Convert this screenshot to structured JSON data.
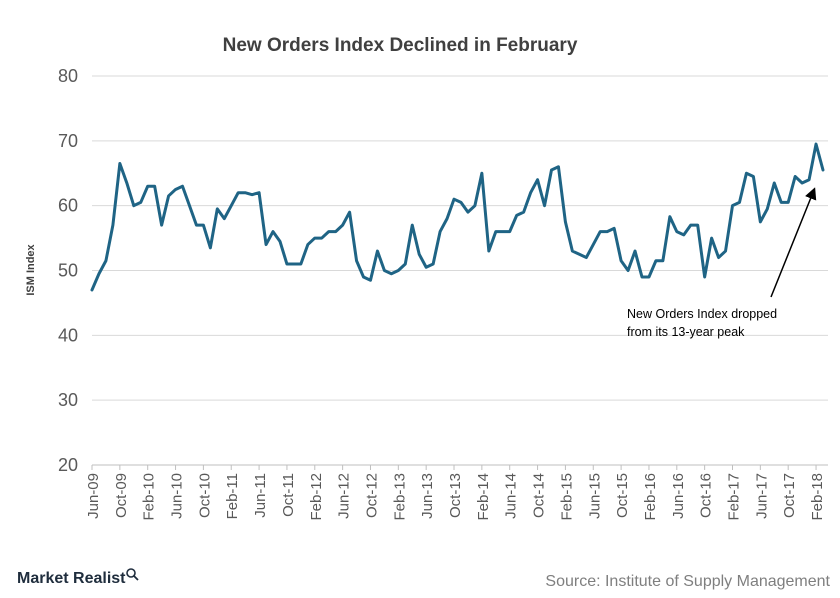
{
  "chart_data": {
    "type": "line",
    "title": "New Orders Index Declined in February",
    "ylabel": "ISM Index",
    "xlabel": "",
    "ylim": [
      20,
      80
    ],
    "yticks": [
      20,
      30,
      40,
      50,
      60,
      70,
      80
    ],
    "grid": true,
    "line_color": "#1f6485",
    "x_tick_labels": [
      "Jun-09",
      "Oct-09",
      "Feb-10",
      "Jun-10",
      "Oct-10",
      "Feb-11",
      "Jun-11",
      "Oct-11",
      "Feb-12",
      "Jun-12",
      "Oct-12",
      "Feb-13",
      "Jun-13",
      "Oct-13",
      "Feb-14",
      "Jun-14",
      "Oct-14",
      "Feb-15",
      "Jun-15",
      "Oct-15",
      "Feb-16",
      "Jun-16",
      "Oct-16",
      "Feb-17",
      "Jun-17",
      "Oct-17",
      "Feb-18"
    ],
    "series": [
      {
        "values": [
          47.0,
          49.5,
          51.5,
          57.0,
          66.5,
          63.5,
          60.0,
          60.5,
          63.0,
          63.0,
          57.0,
          61.5,
          62.5,
          63.0,
          60.0,
          57.0,
          57.0,
          53.5,
          59.5,
          58.0,
          60.0,
          62.0,
          62.0,
          61.7,
          62.0,
          54.0,
          56.0,
          54.5,
          51.0,
          51.0,
          51.0,
          54.0,
          55.0,
          55.0,
          56.0,
          56.0,
          57.0,
          59.0,
          51.5,
          49.0,
          48.5,
          53.0,
          50.0,
          49.5,
          50.0,
          51.0,
          57.0,
          52.5,
          50.5,
          51.0,
          56.0,
          58.0,
          61.0,
          60.5,
          59.0,
          60.0,
          65.0,
          53.0,
          56.0,
          56.0,
          56.0,
          58.5,
          59.0,
          62.0,
          64.0,
          60.0,
          65.5,
          66.0,
          57.5,
          53.0,
          52.5,
          52.0,
          54.0,
          56.0,
          56.0,
          56.5,
          51.5,
          50.0,
          53.0,
          49.0,
          49.0,
          51.5,
          51.5,
          58.3,
          56.0,
          55.5,
          57.0,
          57.0,
          49.0,
          55.0,
          52.0,
          53.0,
          60.0,
          60.5,
          65.0,
          64.5,
          57.5,
          59.5,
          63.5,
          60.5,
          60.5,
          64.5,
          63.5,
          64.0,
          69.5,
          65.5
        ]
      }
    ],
    "annotation": [
      "New Orders Index dropped",
      "from its 13-year peak"
    ]
  },
  "footer": {
    "brand": "Market Realist",
    "source": "Source: Institute of Supply Management"
  }
}
